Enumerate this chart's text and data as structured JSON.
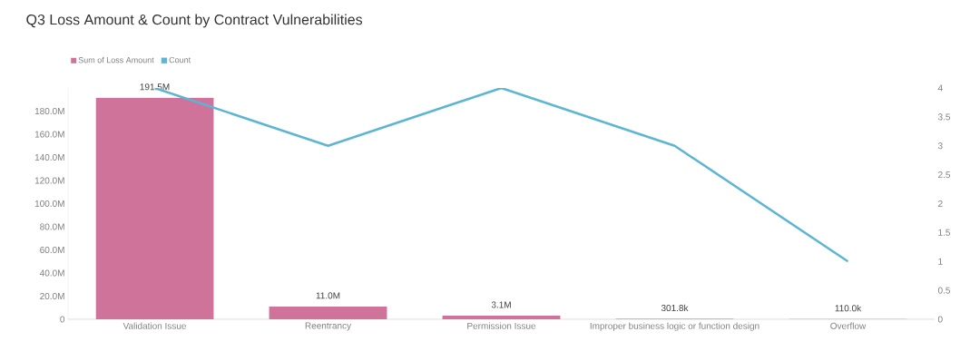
{
  "chart_data": {
    "type": "bar",
    "title": "Q3 Loss Amount & Count by Contract Vulnerabilities",
    "categories": [
      "Validation Issue",
      "Reentrancy",
      "Permission Issue",
      "Improper business logic or function design",
      "Overflow"
    ],
    "series": [
      {
        "name": "Sum of Loss Amount",
        "color": "#cf739b",
        "values": [
          191500000,
          11000000,
          3100000,
          301800,
          110000
        ],
        "value_labels": [
          "191.5M",
          "11.0M",
          "3.1M",
          "301.8k",
          "110.0k"
        ]
      },
      {
        "name": "Count",
        "type": "line",
        "axis": "y2",
        "color": "#5bb5d3",
        "values": [
          4,
          3,
          4,
          3,
          1
        ]
      }
    ],
    "ylim": [
      0,
      200000000
    ],
    "yticks": [
      0,
      {
        "value": 20000000,
        "label": "20.0M"
      },
      {
        "value": 40000000,
        "label": "40.0M"
      },
      {
        "value": 60000000,
        "label": "60.0M"
      },
      {
        "value": 80000000,
        "label": "80.0M"
      },
      {
        "value": 100000000,
        "label": "100.0M"
      },
      {
        "value": 120000000,
        "label": "120.0M"
      },
      {
        "value": 140000000,
        "label": "140.0M"
      },
      {
        "value": 160000000,
        "label": "160.0M"
      },
      {
        "value": 180000000,
        "label": "180.0M"
      }
    ],
    "y2lim": [
      0,
      4
    ],
    "y2ticks": [
      0,
      0.5,
      1,
      1.5,
      2,
      2.5,
      3,
      3.5,
      4
    ],
    "legend": "top left",
    "marker": "none"
  }
}
